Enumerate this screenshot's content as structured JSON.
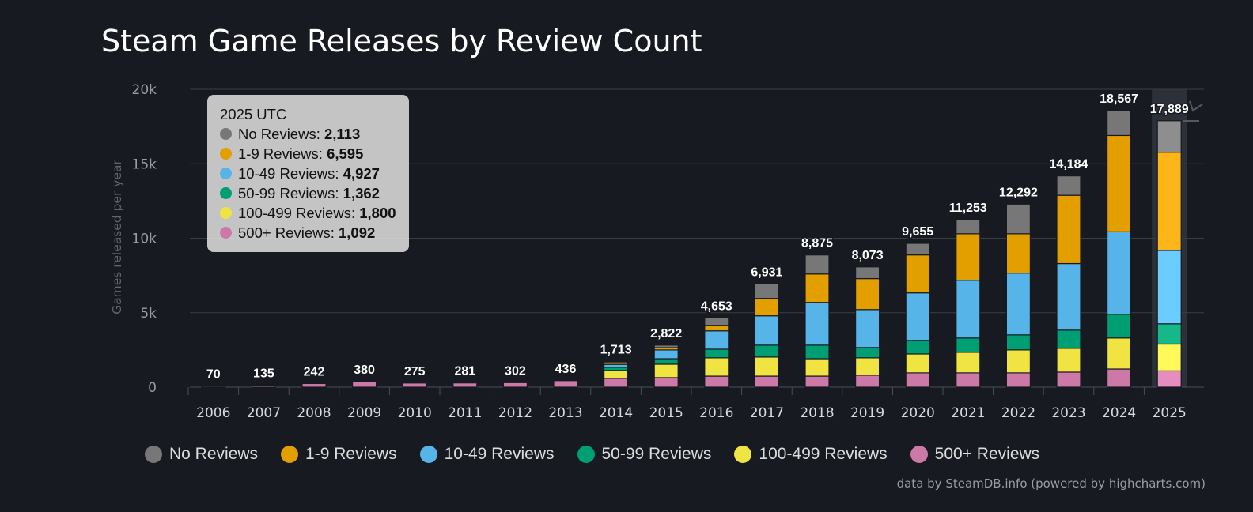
{
  "chart_data": {
    "type": "bar",
    "stacked": true,
    "title": "Steam Game Releases by Review Count",
    "xlabel": "",
    "ylabel": "Games released per year",
    "ylim": [
      0,
      20000
    ],
    "yticks": [
      {
        "v": 0,
        "label": "0"
      },
      {
        "v": 5000,
        "label": "5k"
      },
      {
        "v": 10000,
        "label": "10k"
      },
      {
        "v": 15000,
        "label": "15k"
      },
      {
        "v": 20000,
        "label": "20k"
      }
    ],
    "grid": true,
    "legend_position": "bottom",
    "categories": [
      "2006",
      "2007",
      "2008",
      "2009",
      "2010",
      "2011",
      "2012",
      "2013",
      "2014",
      "2015",
      "2016",
      "2017",
      "2018",
      "2019",
      "2020",
      "2021",
      "2022",
      "2023",
      "2024",
      "2025"
    ],
    "totals": [
      "70",
      "135",
      "242",
      "380",
      "275",
      "281",
      "302",
      "436",
      "1,713",
      "2,822",
      "4,653",
      "6,931",
      "8,875",
      "8,073",
      "9,655",
      "11,253",
      "12,292",
      "14,184",
      "18,567",
      "17,889"
    ],
    "series": [
      {
        "name": "500+ Reviews",
        "color": "#cc79a7",
        "values": [
          70,
          135,
          242,
          380,
          275,
          281,
          302,
          436,
          590,
          640,
          740,
          740,
          740,
          800,
          960,
          960,
          960,
          1010,
          1220,
          1092
        ]
      },
      {
        "name": "100-499 Reviews",
        "color": "#f0e442",
        "values": [
          0,
          0,
          0,
          0,
          0,
          0,
          0,
          0,
          530,
          900,
          1230,
          1280,
          1170,
          1170,
          1270,
          1380,
          1540,
          1600,
          2080,
          1800
        ]
      },
      {
        "name": "50-99 Reviews",
        "color": "#009e73",
        "values": [
          0,
          0,
          0,
          0,
          0,
          0,
          0,
          0,
          210,
          370,
          580,
          800,
          910,
          690,
          910,
          960,
          1010,
          1220,
          1590,
          1362
        ]
      },
      {
        "name": "10-49 Reviews",
        "color": "#56b4e9",
        "values": [
          0,
          0,
          0,
          0,
          0,
          0,
          0,
          0,
          200,
          590,
          1230,
          1970,
          2870,
          2550,
          3190,
          3880,
          4150,
          4470,
          5540,
          4927
        ]
      },
      {
        "name": "1-9 Reviews",
        "color": "#e39f00",
        "values": [
          0,
          0,
          0,
          0,
          0,
          0,
          0,
          0,
          100,
          150,
          370,
          1170,
          1910,
          2080,
          2550,
          3120,
          2640,
          4584,
          6470,
          6595
        ]
      },
      {
        "name": "No Reviews",
        "color": "#777777",
        "values": [
          0,
          0,
          0,
          0,
          0,
          0,
          0,
          0,
          83,
          172,
          503,
          971,
          1275,
          783,
          775,
          953,
          1992,
          1300,
          1667,
          2113
        ]
      }
    ],
    "legend_order": [
      5,
      4,
      3,
      2,
      1,
      0
    ],
    "hovered_index": 19
  },
  "tooltip": {
    "header": "2025 UTC",
    "rows": [
      {
        "label": "No Reviews: ",
        "value": "2,113",
        "color": "#777777"
      },
      {
        "label": "1-9 Reviews: ",
        "value": "6,595",
        "color": "#e39f00"
      },
      {
        "label": "10-49 Reviews: ",
        "value": "4,927",
        "color": "#56b4e9"
      },
      {
        "label": "50-99 Reviews: ",
        "value": "1,362",
        "color": "#009e73"
      },
      {
        "label": "100-499 Reviews: ",
        "value": "1,800",
        "color": "#f0e442"
      },
      {
        "label": "500+ Reviews: ",
        "value": "1,092",
        "color": "#cc79a7"
      }
    ]
  },
  "credit": "data by SteamDB.info (powered by highcharts.com)",
  "icons": {
    "export": "download-icon"
  }
}
